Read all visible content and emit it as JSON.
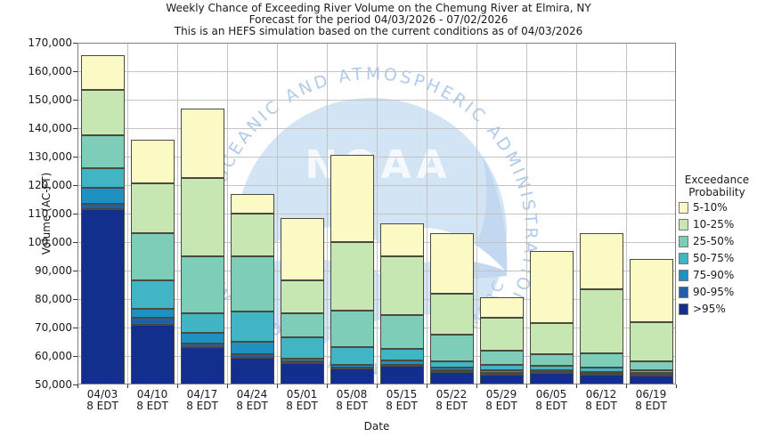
{
  "title": {
    "line1": "Weekly Chance of Exceeding River Volume on the Chemung River at Elmira, NY",
    "line2": "Forecast for the period 04/03/2026 - 07/02/2026",
    "line3": "This is an HEFS simulation based on the current conditions as of 04/03/2026"
  },
  "y_axis": {
    "label": "Volume (AC-FT)",
    "tick_labels": [
      "50,000",
      "60,000",
      "70,000",
      "80,000",
      "90,000",
      "100,000",
      "110,000",
      "120,000",
      "130,000",
      "140,000",
      "150,000",
      "160,000",
      "170,000"
    ]
  },
  "x_axis": {
    "label": "Date",
    "tick_line2": "8 EDT"
  },
  "legend": {
    "title_line1": "Exceedance",
    "title_line2": "Probability",
    "entries": [
      {
        "label": "5-10%",
        "color": "#fbf9c4"
      },
      {
        "label": "10-25%",
        "color": "#c6e7b2"
      },
      {
        "label": "25-50%",
        "color": "#7ecdb9"
      },
      {
        "label": "50-75%",
        "color": "#41b5c3"
      },
      {
        "label": "75-90%",
        "color": "#1e90c1"
      },
      {
        "label": "90-95%",
        "color": "#2360aa"
      },
      {
        "label": ">95%",
        "color": "#122f8e"
      }
    ]
  },
  "watermark": {
    "ring_text_top": "NATIONAL OCEANIC AND ATMOSPHERIC ADMINISTRATION",
    "ring_text_bottom": "U.S. DEPARTMENT OF COMMERCE",
    "center_text": "NOAA",
    "circle_color": "#d3e4f5",
    "text_color": "#b0cbeb"
  },
  "chart_data": {
    "type": "bar",
    "subtype": "stacked",
    "title": "Weekly Chance of Exceeding River Volume on the Chemung River at Elmira, NY",
    "xlabel": "Date",
    "ylabel": "Volume (AC-FT)",
    "unit": "AC-FT",
    "grid": true,
    "legend_position": "right",
    "ylim": [
      50000,
      170000
    ],
    "ytick_step": 10000,
    "baseline": 50000,
    "categories": [
      "04/03",
      "04/10",
      "04/17",
      "04/24",
      "05/01",
      "05/08",
      "05/15",
      "05/22",
      "05/29",
      "06/05",
      "06/12",
      "06/19"
    ],
    "category_time": "8 EDT",
    "series_note": "cumulative_tops are the upper boundary (AC-FT) of each exceedance band per week, stacked from baseline 50000; bands ordered bottom (most probable) to top (least probable)",
    "series": [
      {
        "name": ">95%",
        "color": "#122f8e",
        "cumulative_tops": [
          111500,
          71000,
          63000,
          59500,
          57500,
          55500,
          56500,
          54500,
          53500,
          54000,
          53500,
          53000
        ]
      },
      {
        "name": "90-95%",
        "color": "#2360aa",
        "cumulative_tops": [
          113500,
          73500,
          64500,
          60500,
          58000,
          56000,
          57000,
          55000,
          54000,
          54500,
          54000,
          53500
        ]
      },
      {
        "name": "75-90%",
        "color": "#1e90c1",
        "cumulative_tops": [
          119000,
          76500,
          68000,
          65000,
          59000,
          57000,
          58500,
          56000,
          55000,
          55000,
          54500,
          54000
        ]
      },
      {
        "name": "50-75%",
        "color": "#41b5c3",
        "cumulative_tops": [
          126000,
          86500,
          75000,
          75500,
          66500,
          63000,
          62500,
          58000,
          57000,
          56500,
          56000,
          55000
        ]
      },
      {
        "name": "25-50%",
        "color": "#7ecdb9",
        "cumulative_tops": [
          137500,
          103000,
          95000,
          95000,
          75000,
          76000,
          74500,
          67500,
          62000,
          60500,
          61000,
          58000
        ]
      },
      {
        "name": "10-25%",
        "color": "#c6e7b2",
        "cumulative_tops": [
          153500,
          120500,
          122500,
          110000,
          86500,
          100000,
          95000,
          82000,
          73500,
          71500,
          83500,
          72000
        ]
      },
      {
        "name": "5-10%",
        "color": "#fbf9c4",
        "cumulative_tops": [
          165500,
          136000,
          147000,
          117000,
          108500,
          130500,
          106500,
          103000,
          80500,
          97000,
          103000,
          94000
        ]
      }
    ]
  }
}
